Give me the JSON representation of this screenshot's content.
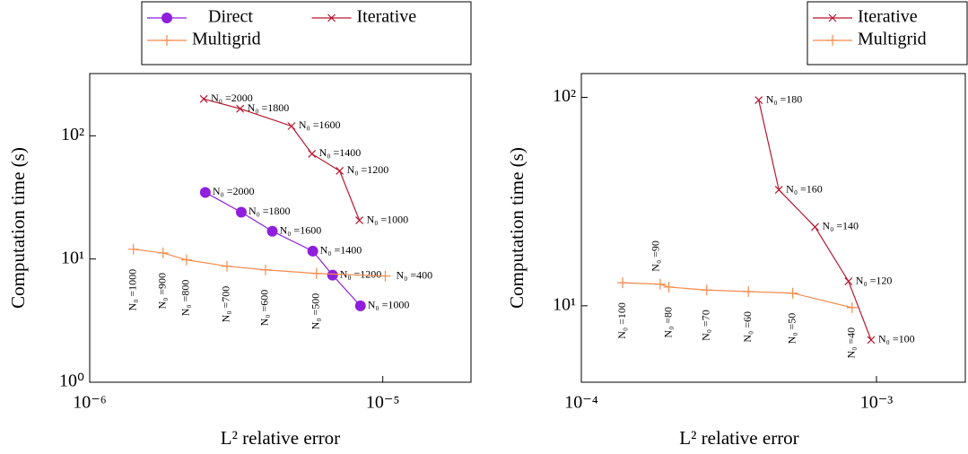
{
  "chart_data": [
    {
      "type": "scatter-line",
      "log_x": true,
      "log_y": true,
      "grid": false,
      "legend_columns": 2,
      "x_label": "L² relative error",
      "y_label": "Computation time (s)",
      "xlim": [
        1e-06,
        2e-05
      ],
      "ylim": [
        1,
        320
      ],
      "xticks": [
        {
          "value": 1e-06,
          "label": "10⁻⁶"
        },
        {
          "value": 1e-05,
          "label": "10⁻⁵"
        }
      ],
      "yticks": [
        {
          "value": 1,
          "label": "10⁰"
        },
        {
          "value": 10,
          "label": "10¹"
        },
        {
          "value": 100,
          "label": "10²"
        }
      ],
      "series": [
        {
          "name": "Direct",
          "color": "#8f1fdc",
          "marker": "circle",
          "x": [
            2.48e-06,
            3.29e-06,
            4.2e-06,
            5.77e-06,
            6.74e-06,
            8.39e-06
          ],
          "values": [
            34.7,
            24,
            16.8,
            11.6,
            7.4,
            4.17
          ],
          "point_labels": [
            "N₀ =2000",
            "N₀ =1800",
            "N₀ =1600",
            "N₀ =1400",
            "N₀ =1200",
            "N₀ =1000"
          ]
        },
        {
          "name": "Iterative",
          "color": "#b8162e",
          "marker": "x",
          "x": [
            2.45e-06,
            3.26e-06,
            4.88e-06,
            5.73e-06,
            7.13e-06,
            8.32e-06
          ],
          "values": [
            199,
            166,
            120,
            71.4,
            51.9,
            20.6
          ],
          "point_labels": [
            "N₀ =2000",
            "N₀ =1800",
            "N₀ =1600",
            "N₀ =1400",
            "N₀ =1200",
            "N₀ =1000"
          ]
        },
        {
          "name": "Multigrid",
          "color": "#f58a4c",
          "marker": "plus",
          "x": [
            1.41e-06,
            1.78e-06,
            2.14e-06,
            2.94e-06,
            3.98e-06,
            5.94e-06,
            1.02e-05
          ],
          "values": [
            12.0,
            11.2,
            9.84,
            8.74,
            8.17,
            7.64,
            7.27
          ],
          "point_labels": [
            "N₀ =1000",
            "N₀ =900",
            "N₀ =800",
            "N₀ =700",
            "N₀ =600",
            "N₀ =500",
            "N₀ =400"
          ]
        }
      ]
    },
    {
      "type": "scatter-line",
      "log_x": true,
      "log_y": true,
      "grid": false,
      "legend_columns": 1,
      "x_label": "L² relative error",
      "y_label": "Computation time (s)",
      "xlim": [
        0.0001,
        0.002
      ],
      "ylim": [
        4.3,
        130
      ],
      "xticks": [
        {
          "value": 0.0001,
          "label": "10⁻⁴"
        },
        {
          "value": 0.001,
          "label": "10⁻³"
        }
      ],
      "yticks": [
        {
          "value": 10,
          "label": "10¹"
        },
        {
          "value": 100,
          "label": "10²"
        }
      ],
      "series": [
        {
          "name": "Iterative",
          "color": "#b8162e",
          "marker": "x",
          "x": [
            0.000399,
            0.000467,
            0.000619,
            0.000804,
            0.000959
          ],
          "values": [
            97,
            36,
            23.9,
            13.1,
            6.86
          ],
          "point_labels": [
            "N₀ =180",
            "N₀ =160",
            "N₀ =140",
            "N₀ =120",
            "N₀ =100"
          ]
        },
        {
          "name": "Multigrid",
          "color": "#f58a4c",
          "marker": "plus",
          "x": [
            0.000138,
            0.000185,
            0.000198,
            0.000266,
            0.000368,
            0.00052,
            0.000827
          ],
          "values": [
            12.9,
            12.7,
            12.3,
            11.9,
            11.7,
            11.5,
            9.8
          ],
          "point_labels": [
            "N₀ =100",
            "N₀ =90",
            "N₀ =80",
            "N₀ =70",
            "N₀ =60",
            "N₀ =50",
            "N₀ =40"
          ]
        }
      ]
    }
  ]
}
